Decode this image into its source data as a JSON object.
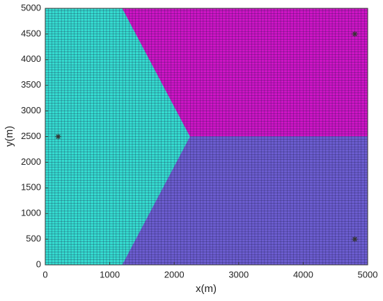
{
  "chart_data": {
    "type": "voronoi",
    "xlabel": "x(m)",
    "ylabel": "y(m)",
    "xlim": [
      0,
      5000
    ],
    "ylim": [
      0,
      5000
    ],
    "xticks": [
      0,
      1000,
      2000,
      3000,
      4000,
      5000
    ],
    "yticks": [
      0,
      500,
      1000,
      1500,
      2000,
      2500,
      3000,
      3500,
      4000,
      4500,
      5000
    ],
    "cell_size": 50,
    "regions": [
      {
        "color": "#35dcd0",
        "x": [
          0,
          1200,
          2250,
          1200,
          0
        ],
        "y": [
          5000,
          5000,
          2500,
          0,
          0
        ]
      },
      {
        "color": "#cf14c6",
        "x": [
          1200,
          5000,
          5000,
          2250
        ],
        "y": [
          5000,
          5000,
          2500,
          2500
        ]
      },
      {
        "color": "#6c5dd0",
        "x": [
          2250,
          5000,
          5000,
          1200
        ],
        "y": [
          2500,
          2500,
          0,
          0
        ]
      }
    ],
    "points": {
      "color": "#333333",
      "x": [
        200,
        4800,
        4800
      ],
      "y": [
        2500,
        4500,
        500
      ]
    }
  }
}
